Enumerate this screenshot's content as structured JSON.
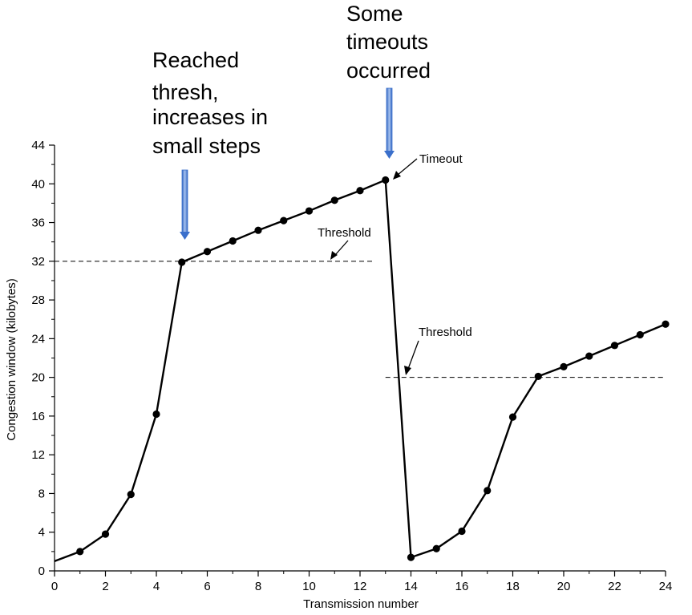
{
  "chart_data": {
    "type": "line",
    "title": "",
    "xlabel": "Transmission number",
    "ylabel": "Congestion window (kilobytes)",
    "xlim": [
      0,
      24
    ],
    "ylim": [
      0,
      44
    ],
    "x_ticks": [
      0,
      2,
      4,
      6,
      8,
      10,
      12,
      14,
      16,
      18,
      20,
      22,
      24
    ],
    "y_ticks": [
      0,
      4,
      8,
      12,
      16,
      20,
      24,
      28,
      32,
      36,
      40,
      44
    ],
    "grid": false,
    "series": [
      {
        "name": "",
        "color": "#000000",
        "points": [
          [
            0,
            1
          ],
          [
            1,
            2
          ],
          [
            2,
            3.8
          ],
          [
            3,
            7.9
          ],
          [
            4,
            16.2
          ],
          [
            5,
            31.9
          ],
          [
            6,
            33
          ],
          [
            7,
            34.1
          ],
          [
            8,
            35.2
          ],
          [
            9,
            36.2
          ],
          [
            10,
            37.2
          ],
          [
            11,
            38.3
          ],
          [
            12,
            39.3
          ],
          [
            13,
            40.4
          ],
          [
            14,
            1.4
          ],
          [
            15,
            2.3
          ],
          [
            16,
            4.1
          ],
          [
            17,
            8.3
          ],
          [
            18,
            15.9
          ],
          [
            19,
            20.1
          ],
          [
            20,
            21.1
          ],
          [
            21,
            22.2
          ],
          [
            22,
            23.3
          ],
          [
            23,
            24.4
          ],
          [
            24,
            25.5
          ]
        ],
        "marker_start_index": 1
      }
    ],
    "threshold_lines": [
      {
        "y": 32,
        "x_range": [
          0,
          12.5
        ]
      },
      {
        "y": 20,
        "x_range": [
          13,
          24
        ]
      }
    ],
    "annotations": [
      {
        "id": "timeout",
        "text": "Timeout"
      },
      {
        "id": "threshold-1",
        "text": "Threshold"
      },
      {
        "id": "threshold-2",
        "text": "Threshold"
      }
    ],
    "callouts": [
      {
        "id": "reached",
        "lines": [
          "Reached",
          "thresh,",
          "increases in",
          "small steps"
        ],
        "color": "#4a7fd0"
      },
      {
        "id": "timeouts",
        "lines": [
          "Some",
          "timeouts",
          "occurred"
        ],
        "color": "#4a7fd0"
      }
    ]
  }
}
